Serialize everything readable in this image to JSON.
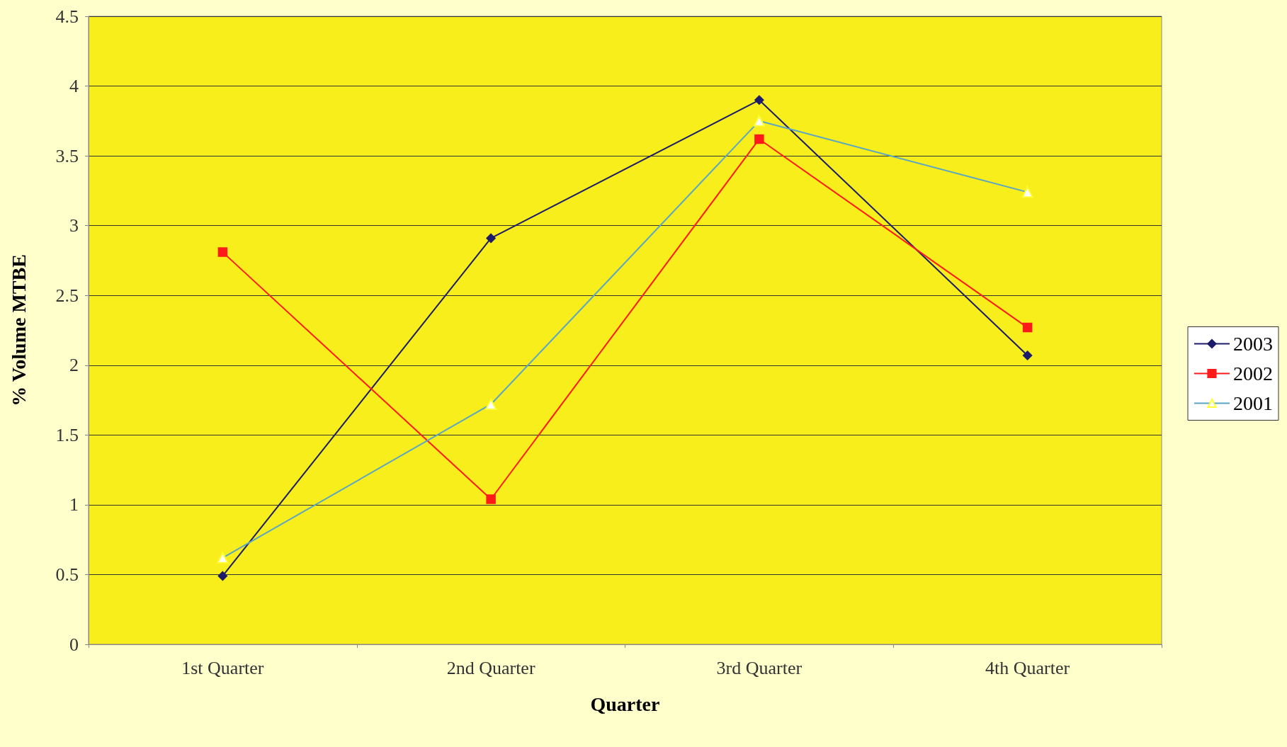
{
  "chart_data": {
    "type": "line",
    "xlabel": "Quarter",
    "ylabel": "% Volume MTBE",
    "categories": [
      "1st Quarter",
      "2nd Quarter",
      "3rd Quarter",
      "4th Quarter"
    ],
    "series": [
      {
        "name": "2003",
        "color": "#1c1c6b",
        "marker": "diamond",
        "values": [
          0.49,
          2.91,
          3.9,
          2.07
        ]
      },
      {
        "name": "2002",
        "color": "#ff1a1a",
        "marker": "square",
        "values": [
          2.81,
          1.04,
          3.62,
          2.27
        ]
      },
      {
        "name": "2001",
        "color": "#5aa6c4",
        "marker": "triangle",
        "values": [
          0.62,
          1.72,
          3.75,
          3.24
        ]
      }
    ],
    "ylim": [
      0,
      4.5
    ],
    "yticks": [
      0,
      0.5,
      1,
      1.5,
      2,
      2.5,
      3,
      3.5,
      4,
      4.5
    ],
    "grid": "y",
    "legend": "right",
    "line_style": "solid"
  }
}
